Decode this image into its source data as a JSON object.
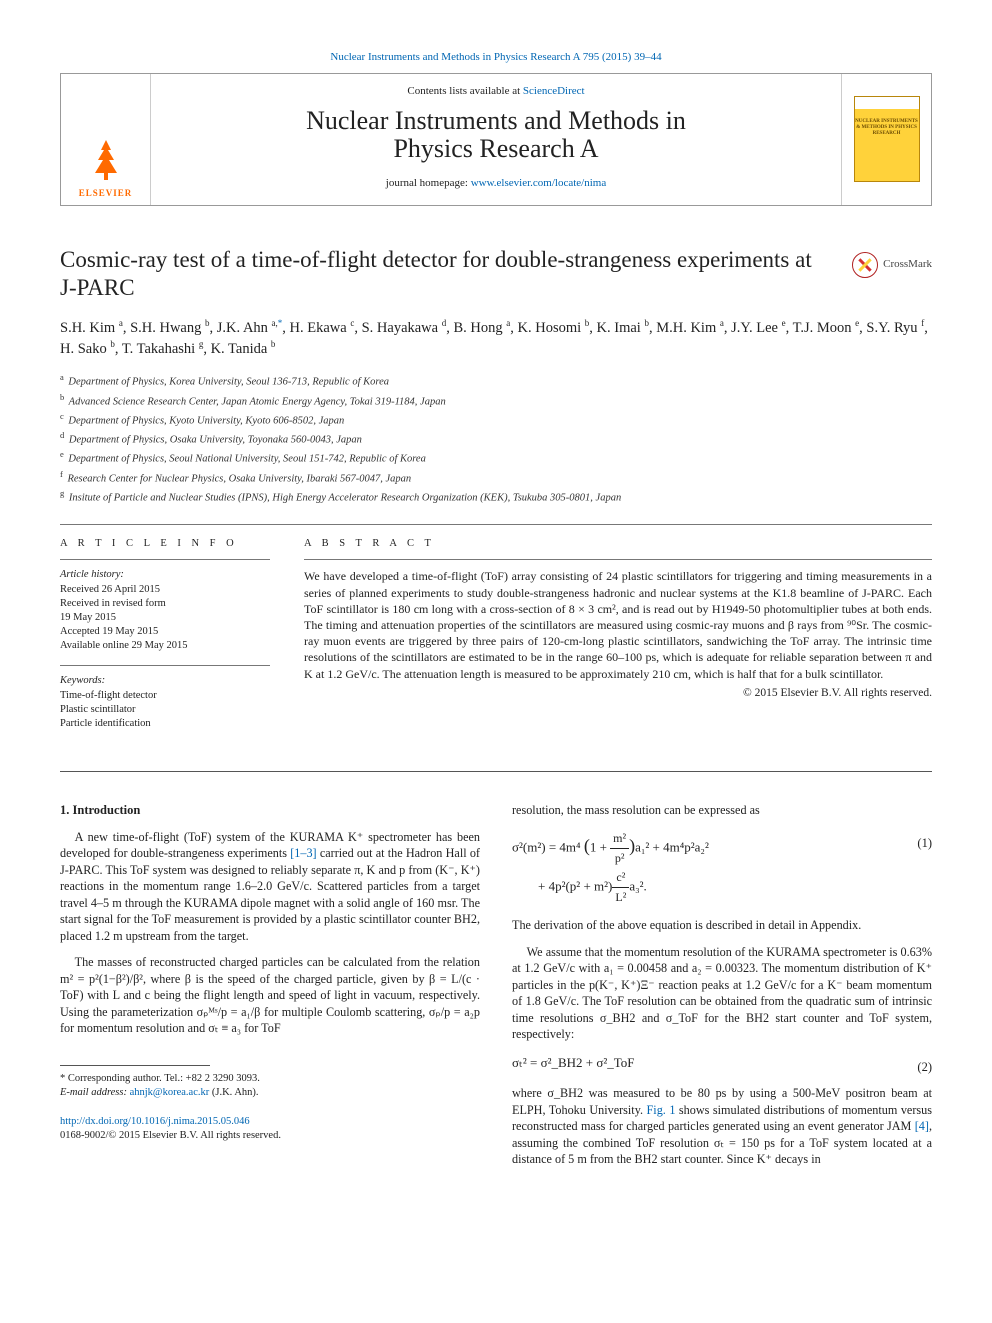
{
  "top_link": {
    "journal": "Nuclear Instruments and Methods in Physics Research A",
    "citation": " 795 (2015) 39–44"
  },
  "header": {
    "contents_prefix": "Contents lists available at ",
    "contents_link": "ScienceDirect",
    "journal_line1": "Nuclear Instruments and Methods in",
    "journal_line2": "Physics Research A",
    "homepage_prefix": "journal homepage: ",
    "homepage_link": "www.elsevier.com/locate/nima",
    "publisher_word": "ELSEVIER",
    "cover_text": "NUCLEAR INSTRUMENTS & METHODS IN PHYSICS RESEARCH"
  },
  "crossmark_label": "CrossMark",
  "title": "Cosmic-ray test of a time-of-flight detector for double-strangeness experiments at J-PARC",
  "authors_html": "S.H. Kim <sup>a</sup>, S.H. Hwang <sup>b</sup>, J.K. Ahn <sup>a,</sup><span class='link'><sup>*</sup></span>, H. Ekawa <sup>c</sup>, S. Hayakawa <sup>d</sup>, B. Hong <sup>a</sup>, K. Hosomi <sup>b</sup>, K. Imai <sup>b</sup>, M.H. Kim <sup>a</sup>, J.Y. Lee <sup>e</sup>, T.J. Moon <sup>e</sup>, S.Y. Ryu <sup>f</sup>, H. Sako <sup>b</sup>, T. Takahashi <sup>g</sup>, K. Tanida <sup>b</sup>",
  "affiliations": [
    {
      "sup": "a",
      "text": "Department of Physics, Korea University, Seoul 136-713, Republic of Korea"
    },
    {
      "sup": "b",
      "text": "Advanced Science Research Center, Japan Atomic Energy Agency, Tokai 319-1184, Japan"
    },
    {
      "sup": "c",
      "text": "Department of Physics, Kyoto University, Kyoto 606-8502, Japan"
    },
    {
      "sup": "d",
      "text": "Department of Physics, Osaka University, Toyonaka 560-0043, Japan"
    },
    {
      "sup": "e",
      "text": "Department of Physics, Seoul National University, Seoul 151-742, Republic of Korea"
    },
    {
      "sup": "f",
      "text": "Research Center for Nuclear Physics, Osaka University, Ibaraki 567-0047, Japan"
    },
    {
      "sup": "g",
      "text": "Insitute of Particle and Nuclear Studies (IPNS), High Energy Accelerator Research Organization (KEK), Tsukuba 305-0801, Japan"
    }
  ],
  "article_info": {
    "head": "A R T I C L E  I N F O",
    "history_label": "Article history:",
    "history": [
      "Received 26 April 2015",
      "Received in revised form",
      "19 May 2015",
      "Accepted 19 May 2015",
      "Available online 29 May 2015"
    ],
    "keywords_label": "Keywords:",
    "keywords": [
      "Time-of-flight detector",
      "Plastic scintillator",
      "Particle identification"
    ]
  },
  "abstract": {
    "head": "A B S T R A C T",
    "body": "We have developed a time-of-flight (ToF) array consisting of 24 plastic scintillators for triggering and timing measurements in a series of planned experiments to study double-strangeness hadronic and nuclear systems at the K1.8 beamline of J-PARC. Each ToF scintillator is 180 cm long with a cross-section of 8 × 3 cm², and is read out by H1949-50 photomultiplier tubes at both ends. The timing and attenuation properties of the scintillators are measured using cosmic-ray muons and β rays from ⁹⁰Sr. The cosmic-ray muon events are triggered by three pairs of 120-cm-long plastic scintillators, sandwiching the ToF array. The intrinsic time resolutions of the scintillators are estimated to be in the range 60–100 ps, which is adequate for reliable separation between π and K at 1.2 GeV/c. The attenuation length is measured to be approximately 210 cm, which is half that for a bulk scintillator.",
    "copyright": "© 2015 Elsevier B.V. All rights reserved."
  },
  "section1": {
    "head": "1.  Introduction",
    "p1_a": "A new time-of-flight (ToF) system of the KURAMA K⁺ spectrometer has been developed for double-strangeness experiments ",
    "p1_ref": "[1–3]",
    "p1_b": " carried out at the Hadron Hall of J-PARC. This ToF system was designed to reliably separate π, K and p from (K⁻, K⁺) reactions in the momentum range 1.6–2.0 GeV/c. Scattered particles from a target travel 4–5 m through the KURAMA dipole magnet with a solid angle of 160 msr. The start signal for the ToF measurement is provided by a plastic scintillator counter BH2, placed 1.2 m upstream from the target.",
    "p2": "The masses of reconstructed charged particles can be calculated from the relation m² = p²(1−β²)/β², where β is the speed of the charged particle, given by β = L/(c · ToF) with L and c being the flight length and speed of light in vacuum, respectively. Using the parameterization σₚᴹˢ/p = a₁/β for multiple Coulomb scattering, σₚ/p = a₂p for momentum resolution and σₜ ≡ a₃ for ToF",
    "col2_lead": "resolution, the mass resolution can be expressed as",
    "p3": "The derivation of the above equation is described in detail in Appendix.",
    "p4_a": "We assume that the momentum resolution of the KURAMA spectrometer is 0.63% at 1.2 GeV/c with a₁ = 0.00458 and a₂ = 0.00323. The momentum distribution of K⁺ particles in the p(K⁻, K⁺)Ξ⁻ reaction peaks at 1.2 GeV/c for a K⁻ beam momentum of 1.8 GeV/c. The ToF resolution can be obtained from the quadratic sum of intrinsic time resolutions σ_BH2 and σ_ToF for the BH2 start counter and ToF system, respectively:",
    "p5_a": "where σ_BH2 was measured to be 80 ps by using a 500-MeV positron beam at ELPH, Tohoku University. ",
    "p5_fig": "Fig. 1",
    "p5_b": " shows simulated distributions of momentum versus reconstructed mass for charged particles generated using an event generator JAM ",
    "p5_ref": "[4]",
    "p5_c": ", assuming the combined ToF resolution σₜ = 150 ps for a ToF system located at a distance of 5 m from the BH2 start counter. Since K⁺ decays in"
  },
  "eq1": {
    "line1_a": "σ²(m²) = 4m⁴",
    "line1_paren_open": "(",
    "line1_one": "1 + ",
    "line1_frac_num": "m²",
    "line1_frac_den": "p²",
    "line1_paren_close": ")",
    "line1_b": "a₁² + 4m⁴p²a₂²",
    "line2_a": "+ 4p²(p² + m²)",
    "line2_frac_num": "c²",
    "line2_frac_den": "L²",
    "line2_b": "a₃².",
    "num": "(1)"
  },
  "eq2": {
    "body": "σₜ² = σ²_BH2 + σ²_ToF",
    "num": "(2)"
  },
  "footnote": {
    "corr": "* Corresponding author. Tel.: +82 2 3290 3093.",
    "email_label": "E-mail address: ",
    "email": "ahnjk@korea.ac.kr",
    "email_tail": " (J.K. Ahn)."
  },
  "doi": {
    "link": "http://dx.doi.org/10.1016/j.nima.2015.05.046",
    "line2": "0168-9002/© 2015 Elsevier B.V. All rights reserved."
  },
  "colors": {
    "link": "#0066b3",
    "elsevier_orange": "#ff6a00",
    "cover_yellow": "#ffd23a",
    "badge_red": "#d62f2f"
  }
}
